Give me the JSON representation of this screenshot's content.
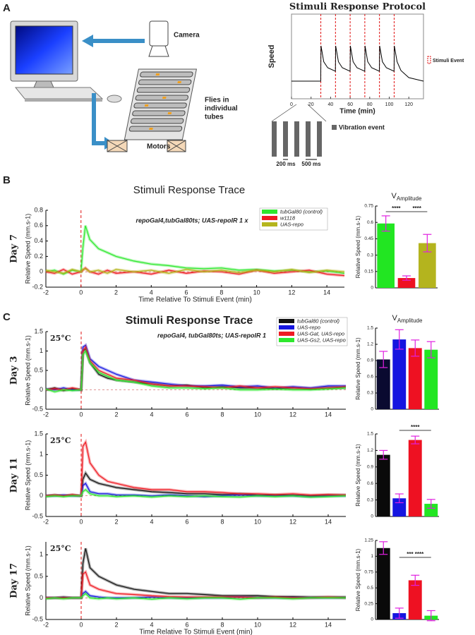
{
  "panel_labels": [
    "A",
    "B",
    "C"
  ],
  "diagram": {
    "camera": "Camera",
    "flies": [
      "Flies in",
      "individual",
      "tubes"
    ],
    "motors": "Motors"
  },
  "vibration": {
    "legend": "Vibration event",
    "pulse": "200 ms",
    "interval": "500 ms"
  },
  "chart_data": [
    {
      "type": "protocol",
      "title": "Stimuli Response Protocol",
      "x_label": "Time (min)",
      "y_label": "Speed",
      "x": [
        0,
        29.9,
        30.2,
        33,
        37,
        44.9,
        45.2,
        48,
        52,
        59.9,
        60.2,
        63,
        67,
        74.9,
        75.2,
        78,
        82,
        89.9,
        90.2,
        93,
        97,
        104.9,
        105.2,
        108,
        112,
        120,
        135
      ],
      "values": [
        0,
        0,
        1,
        0.55,
        0.38,
        0.28,
        1,
        0.55,
        0.38,
        0.28,
        1,
        0.55,
        0.38,
        0.28,
        1,
        0.55,
        0.38,
        0.28,
        1,
        0.55,
        0.38,
        0.28,
        1,
        0.55,
        0.3,
        0.1,
        0
      ],
      "color": "#000000",
      "xlim": [
        0,
        135
      ],
      "xticks": [
        0,
        20,
        40,
        60,
        80,
        100,
        120
      ],
      "ylim": [
        -0.5,
        1.9
      ],
      "events": [
        30,
        45,
        60,
        75,
        90,
        105
      ],
      "event_label": "Stimuli Event",
      "event_color": "#e01010"
    },
    {
      "type": "trace",
      "title": "Stimuli Response Trace",
      "annotation": "repoGal4,tubGal80ts; UAS-repoIR 1 x",
      "day": "Day 7",
      "y_label": "Relative Speed (mm.s-1)",
      "x_label": "Time Relative To Stimuli Event (min)",
      "legend": "upper right",
      "x": [
        -2,
        -1.5,
        -1,
        -0.5,
        0,
        0.1,
        0.25,
        0.5,
        1,
        1.5,
        2,
        3,
        4,
        5,
        6,
        7,
        8,
        9,
        10,
        11,
        12,
        13,
        14,
        15
      ],
      "series": [
        {
          "name": "tubGal80 (control)",
          "color": "#2ee82e",
          "values": [
            0,
            0.02,
            -0.03,
            0.02,
            0,
            0.3,
            0.6,
            0.42,
            0.3,
            0.25,
            0.2,
            0.14,
            0.1,
            0.08,
            0.05,
            0.04,
            0.05,
            0.02,
            0.03,
            0.01,
            0.02,
            0,
            0.01,
            -0.02
          ]
        },
        {
          "name": "w1118",
          "color": "#ee1c24",
          "values": [
            0,
            -0.02,
            0.03,
            -0.03,
            0,
            0.02,
            0.05,
            0,
            -0.03,
            0.02,
            -0.02,
            0,
            -0.03,
            0.02,
            -0.02,
            0.01,
            0,
            -0.03,
            0.02,
            -0.02,
            0,
            0.02,
            -0.03,
            -0.05
          ]
        },
        {
          "name": "UAS-repo",
          "color": "#b5b51e",
          "values": [
            0.02,
            0,
            -0.02,
            0.03,
            0,
            0.03,
            0.04,
            0,
            0.02,
            -0.02,
            0.03,
            0,
            0.02,
            -0.02,
            0.03,
            0,
            0.02,
            -0.01,
            0.02,
            0,
            0.03,
            -0.01,
            0.02,
            0
          ]
        }
      ],
      "xlim": [
        -2,
        15
      ],
      "xticks": [
        -2,
        0,
        2,
        4,
        6,
        8,
        10,
        12,
        14
      ],
      "ylim": [
        -0.2,
        0.8
      ],
      "yticks": [
        -0.2,
        0,
        0.2,
        0.4,
        0.6,
        0.8
      ]
    },
    {
      "type": "bar",
      "title": "V",
      "title_subscript": "Amplitude",
      "y_label": "Relative Speed (mm.s-1)",
      "values": [
        0.59,
        0.09,
        0.41
      ],
      "errors": [
        0.07,
        0.02,
        0.08
      ],
      "colors": [
        "#22e622",
        "#ee1122",
        "#b4b41e"
      ],
      "ylim": [
        0,
        0.75
      ],
      "yticks": [
        0,
        0.15,
        0.3,
        0.45,
        0.6,
        0.75
      ],
      "significance": [
        "****",
        "****"
      ]
    },
    {
      "type": "trace",
      "title": "Stimuli Response Trace",
      "annotation": "repoGal4, tubGal80ts; UAS-repoIR 1",
      "day": "Day 3",
      "temperature": "25°C",
      "y_label": "Relative Speed (mm.s-1)",
      "legend": "upper right",
      "x": [
        -2,
        -1.5,
        -1,
        -0.5,
        0,
        0.1,
        0.25,
        0.5,
        1,
        1.5,
        2,
        3,
        4,
        5,
        6,
        7,
        8,
        9,
        10,
        11,
        12,
        13,
        14,
        15
      ],
      "series": [
        {
          "name": "tubGal80 (control)",
          "color": "#111111",
          "values": [
            0,
            0.05,
            -0.02,
            0.03,
            0,
            1,
            1.05,
            0.7,
            0.4,
            0.3,
            0.25,
            0.2,
            0.15,
            0.1,
            0.12,
            0.05,
            0.08,
            0.05,
            0.05,
            0.03,
            0.05,
            0.02,
            0.05,
            0.05
          ]
        },
        {
          "name": "UAS-repo",
          "color": "#1515e0",
          "values": [
            0.02,
            0,
            0.05,
            0,
            0,
            1.1,
            1.15,
            0.8,
            0.6,
            0.5,
            0.4,
            0.25,
            0.2,
            0.15,
            0.1,
            0.1,
            0.12,
            0.08,
            0.1,
            0.05,
            0.08,
            0.05,
            0.1,
            0.1
          ]
        },
        {
          "name": "UAS-Gat, UAS-repo",
          "color": "#ee1c24",
          "values": [
            0,
            0.03,
            0,
            0.05,
            0,
            1,
            1.1,
            0.75,
            0.5,
            0.4,
            0.3,
            0.25,
            0.15,
            0.1,
            0.1,
            0.08,
            0.05,
            0.1,
            0.05,
            0.08,
            0.05,
            0.03,
            0.05,
            0.08
          ]
        },
        {
          "name": "UAS-Gs2, UAS-repo",
          "color": "#2ee82e",
          "values": [
            0.02,
            -0.05,
            0,
            -0.02,
            0,
            0.9,
            1,
            0.7,
            0.45,
            0.35,
            0.25,
            0.2,
            0.1,
            0.05,
            0.05,
            0.03,
            0.05,
            0,
            0,
            0.02,
            0,
            0,
            0.02,
            0.05
          ]
        }
      ],
      "xlim": [
        -2,
        15
      ],
      "xticks": [
        -2,
        0,
        2,
        4,
        6,
        8,
        10,
        12,
        14
      ],
      "ylim": [
        -0.5,
        1.5
      ],
      "yticks": [
        -0.5,
        0,
        0.5,
        1,
        1.5
      ]
    },
    {
      "type": "bar",
      "title": "V",
      "title_subscript": "Amplitude",
      "y_label": "Relative Speed (mm.s-1)",
      "values": [
        0.92,
        1.29,
        1.13,
        1.1
      ],
      "errors": [
        0.15,
        0.18,
        0.15,
        0.15
      ],
      "colors": [
        "#0a0a30",
        "#1515e0",
        "#ee1122",
        "#22e622"
      ],
      "ylim": [
        0,
        1.5
      ],
      "yticks": [
        0,
        0.3,
        0.6,
        0.9,
        1.2,
        1.5
      ]
    },
    {
      "type": "trace",
      "day": "Day 11",
      "temperature": "25°C",
      "y_label": "Relative Speed (mm.s-1)",
      "x": [
        -2,
        -1.5,
        -1,
        -0.5,
        0,
        0.1,
        0.25,
        0.5,
        1,
        1.5,
        2,
        3,
        4,
        5,
        6,
        7,
        8,
        9,
        10,
        11,
        12,
        13,
        14,
        15
      ],
      "series": [
        {
          "name": "tubGal80 (control)",
          "color": "#111111",
          "values": [
            0,
            0.02,
            0,
            0.02,
            0,
            0.4,
            0.55,
            0.4,
            0.3,
            0.25,
            0.2,
            0.15,
            0.1,
            0.08,
            0.05,
            0.05,
            0.03,
            0.05,
            0.02,
            0.02,
            0.02,
            0,
            0.02,
            0.02
          ]
        },
        {
          "name": "UAS-repo",
          "color": "#1515e0",
          "values": [
            0,
            0,
            0.02,
            0,
            0,
            0.25,
            0.3,
            0.1,
            0.05,
            0.05,
            0.02,
            0.02,
            0,
            0.02,
            0,
            -0.02,
            0,
            0.02,
            0,
            0,
            0,
            -0.02,
            0,
            0
          ]
        },
        {
          "name": "UAS-Gat, UAS-repo",
          "color": "#ee1c24",
          "values": [
            0,
            0.02,
            0,
            0.03,
            0,
            1.2,
            1.3,
            0.8,
            0.5,
            0.35,
            0.3,
            0.2,
            0.15,
            0.15,
            0.1,
            0.1,
            0.08,
            0.05,
            0.05,
            0.03,
            0.05,
            0.02,
            0.03,
            0.02
          ]
        },
        {
          "name": "UAS-Gs2, UAS-repo",
          "color": "#2ee82e",
          "values": [
            -0.02,
            0,
            -0.02,
            0,
            0,
            0.1,
            0.15,
            0.05,
            0,
            0,
            -0.02,
            0,
            -0.03,
            0,
            -0.02,
            0,
            -0.02,
            -0.03,
            0,
            -0.02,
            0,
            -0.03,
            -0.02,
            0
          ]
        }
      ],
      "xlim": [
        -2,
        15
      ],
      "xticks": [
        -2,
        0,
        2,
        4,
        6,
        8,
        10,
        12,
        14
      ],
      "ylim": [
        -0.5,
        1.5
      ],
      "yticks": [
        -0.5,
        0,
        0.5,
        1,
        1.5
      ]
    },
    {
      "type": "bar",
      "y_label": "Relative Speed (mm.s-1)",
      "values": [
        1.12,
        0.33,
        1.39,
        0.23
      ],
      "errors": [
        0.08,
        0.08,
        0.07,
        0.08
      ],
      "colors": [
        "#0a0a0a",
        "#1515e0",
        "#ee1122",
        "#22e622"
      ],
      "ylim": [
        0,
        1.5
      ],
      "yticks": [
        0,
        0.3,
        0.6,
        0.9,
        1.2,
        1.5
      ],
      "significance": [
        "****"
      ]
    },
    {
      "type": "trace",
      "day": "Day 17",
      "temperature": "25°C",
      "y_label": "Relative Speed (mm.s-1)",
      "x_label": "Time Relative To Stimuli Event (min)",
      "x": [
        -2,
        -1.5,
        -1,
        -0.5,
        0,
        0.1,
        0.25,
        0.5,
        1,
        1.5,
        2,
        3,
        4,
        5,
        6,
        7,
        8,
        9,
        10,
        11,
        12,
        13,
        14,
        15
      ],
      "series": [
        {
          "name": "tubGal80 (control)",
          "color": "#111111",
          "values": [
            0,
            0,
            0.02,
            0,
            0,
            0.8,
            1.15,
            0.7,
            0.5,
            0.4,
            0.3,
            0.2,
            0.15,
            0.1,
            0.1,
            0.08,
            0.05,
            0.05,
            0.05,
            0.03,
            0.03,
            0.02,
            0.02,
            0.02
          ]
        },
        {
          "name": "UAS-repo",
          "color": "#1515e0",
          "values": [
            0,
            0,
            0,
            0,
            0,
            0.1,
            0.15,
            0.05,
            0.02,
            0,
            0,
            0,
            0.02,
            0,
            0,
            0,
            0,
            0.02,
            0,
            0,
            0,
            0,
            0,
            0
          ]
        },
        {
          "name": "UAS-Gat, UAS-repo",
          "color": "#ee1c24",
          "values": [
            0,
            0,
            0,
            0,
            0,
            0.55,
            0.6,
            0.3,
            0.2,
            0.15,
            0.1,
            0.08,
            0.05,
            0.03,
            0.02,
            0.02,
            0.02,
            0.02,
            0,
            0.02,
            0,
            0,
            0.02,
            0
          ]
        },
        {
          "name": "UAS-Gs2, UAS-repo",
          "color": "#2ee82e",
          "values": [
            -0.02,
            0,
            -0.02,
            0,
            0,
            0.05,
            0.1,
            0,
            -0.02,
            0,
            -0.02,
            0,
            -0.03,
            0,
            -0.02,
            0,
            0,
            -0.03,
            0,
            0,
            -0.02,
            0,
            0,
            0
          ]
        }
      ],
      "xlim": [
        -2,
        15
      ],
      "xticks": [
        -2,
        0,
        2,
        4,
        6,
        8,
        10,
        12,
        14
      ],
      "ylim": [
        -0.5,
        1.3
      ],
      "yticks": [
        -0.5,
        0,
        0.5,
        1
      ]
    },
    {
      "type": "bar",
      "y_label": "Relative Speed (mm.s-1)",
      "values": [
        1.13,
        0.1,
        0.62,
        0.06
      ],
      "errors": [
        0.1,
        0.08,
        0.08,
        0.08
      ],
      "colors": [
        "#0a0a0a",
        "#1515e0",
        "#ee1122",
        "#22e622"
      ],
      "ylim": [
        0,
        1.25
      ],
      "yticks": [
        0,
        0.25,
        0.5,
        0.75,
        1,
        1.25
      ],
      "significance": [
        "*** ****"
      ]
    }
  ]
}
